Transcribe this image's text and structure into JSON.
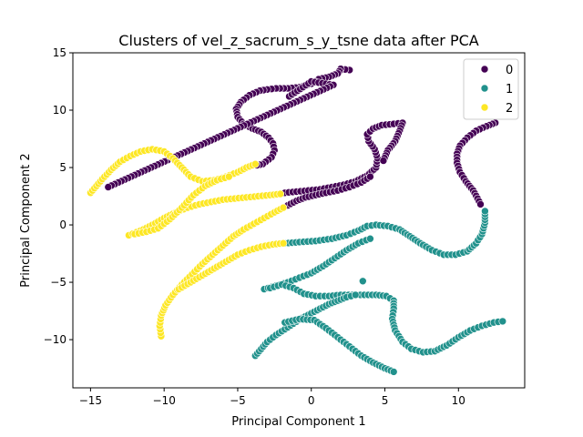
{
  "chart_data": {
    "type": "scatter",
    "title": "Clusters of vel_z_sacrum_s_y_tsne data after PCA",
    "xlabel": "Principal Component 1",
    "ylabel": "Principal Component 2",
    "xlim": [
      -16.2,
      14.5
    ],
    "ylim": [
      -14.2,
      15.0
    ],
    "xticks": [
      -15,
      -10,
      -5,
      0,
      5,
      10
    ],
    "yticks": [
      -10,
      -5,
      0,
      5,
      10,
      15
    ],
    "grid": false,
    "legend": {
      "placement": "top-right",
      "entries": [
        "0",
        "1",
        "2"
      ]
    },
    "series": [
      {
        "name": "0",
        "color": "#440154",
        "segments": [
          [
            [
              2.6,
              13.5
            ],
            [
              2.0,
              13.6
            ],
            [
              1.8,
              13.2
            ],
            [
              1.2,
              12.9
            ],
            [
              0.5,
              12.7
            ],
            [
              0.0,
              12.3
            ],
            [
              -0.8,
              12.0
            ],
            [
              -1.6,
              11.9
            ],
            [
              -2.4,
              11.9
            ],
            [
              -3.0,
              11.8
            ],
            [
              -3.5,
              11.7
            ],
            [
              -4.2,
              11.3
            ],
            [
              -4.8,
              10.7
            ],
            [
              -5.1,
              10.1
            ],
            [
              -5.0,
              9.4
            ],
            [
              -4.6,
              8.8
            ],
            [
              -4.0,
              8.4
            ],
            [
              -3.4,
              8.1
            ],
            [
              -2.9,
              7.6
            ],
            [
              -2.6,
              7.1
            ],
            [
              -2.5,
              6.5
            ],
            [
              -2.7,
              5.9
            ],
            [
              -3.3,
              5.3
            ],
            [
              -3.7,
              5.2
            ]
          ],
          [
            [
              -1.8,
              2.8
            ],
            [
              -1.0,
              2.9
            ],
            [
              -0.2,
              3.0
            ],
            [
              0.6,
              3.1
            ],
            [
              1.4,
              3.3
            ],
            [
              2.2,
              3.5
            ],
            [
              3.0,
              3.8
            ],
            [
              3.8,
              4.3
            ],
            [
              4.4,
              5.0
            ],
            [
              4.5,
              5.8
            ],
            [
              4.3,
              6.6
            ],
            [
              3.9,
              7.3
            ],
            [
              3.8,
              7.9
            ],
            [
              4.2,
              8.4
            ],
            [
              4.8,
              8.7
            ],
            [
              5.6,
              8.8
            ],
            [
              6.2,
              8.9
            ],
            [
              6.0,
              8.2
            ],
            [
              5.7,
              7.3
            ],
            [
              5.2,
              6.5
            ],
            [
              4.9,
              5.6
            ]
          ],
          [
            [
              -1.6,
              1.7
            ],
            [
              -1.0,
              2.1
            ],
            [
              -0.4,
              2.4
            ],
            [
              0.3,
              2.6
            ],
            [
              1.0,
              2.8
            ],
            [
              1.8,
              3.0
            ],
            [
              2.6,
              3.3
            ],
            [
              3.4,
              3.7
            ],
            [
              4.0,
              4.2
            ]
          ],
          [
            [
              12.5,
              8.9
            ],
            [
              11.9,
              8.6
            ],
            [
              11.2,
              8.2
            ],
            [
              10.6,
              7.6
            ],
            [
              10.1,
              6.9
            ],
            [
              9.9,
              6.2
            ],
            [
              9.9,
              5.4
            ],
            [
              10.1,
              4.6
            ],
            [
              10.5,
              3.8
            ],
            [
              11.0,
              3.0
            ],
            [
              11.3,
              2.3
            ],
            [
              11.5,
              1.8
            ]
          ],
          [
            [
              -1.5,
              11.2
            ],
            [
              0.0,
              12.5
            ],
            [
              1.5,
              12.2
            ],
            [
              -13.8,
              3.3
            ]
          ]
        ]
      },
      {
        "name": "1",
        "color": "#21918c",
        "segments": [
          [
            [
              -1.8,
              -1.6
            ],
            [
              -0.8,
              -1.5
            ],
            [
              0.3,
              -1.4
            ],
            [
              1.4,
              -1.2
            ],
            [
              2.4,
              -0.9
            ],
            [
              3.2,
              -0.5
            ],
            [
              3.8,
              -0.1
            ],
            [
              4.4,
              0.0
            ],
            [
              5.2,
              -0.1
            ],
            [
              6.0,
              -0.4
            ],
            [
              6.7,
              -1.0
            ],
            [
              7.4,
              -1.6
            ],
            [
              8.2,
              -2.2
            ],
            [
              9.0,
              -2.6
            ],
            [
              9.8,
              -2.6
            ],
            [
              10.6,
              -2.3
            ],
            [
              11.2,
              -1.6
            ],
            [
              11.6,
              -0.8
            ],
            [
              11.8,
              0.2
            ],
            [
              11.8,
              1.2
            ]
          ],
          [
            [
              -3.2,
              -5.6
            ],
            [
              -2.4,
              -5.3
            ],
            [
              -1.6,
              -5.0
            ],
            [
              -0.8,
              -4.6
            ],
            [
              0.0,
              -4.2
            ],
            [
              0.8,
              -3.6
            ],
            [
              1.6,
              -2.9
            ],
            [
              2.4,
              -2.2
            ],
            [
              3.2,
              -1.6
            ],
            [
              4.0,
              -1.2
            ]
          ],
          [
            [
              -2.8,
              -5.5
            ],
            [
              -2.0,
              -5.2
            ],
            [
              -1.2,
              -5.5
            ],
            [
              -0.5,
              -6.0
            ],
            [
              0.3,
              -6.2
            ],
            [
              1.2,
              -6.2
            ],
            [
              2.0,
              -6.1
            ],
            [
              2.8,
              -6.1
            ],
            [
              3.6,
              -6.1
            ],
            [
              4.4,
              -6.1
            ],
            [
              5.1,
              -6.2
            ],
            [
              5.6,
              -6.6
            ],
            [
              5.6,
              -7.3
            ],
            [
              5.5,
              -8.2
            ],
            [
              5.7,
              -9.2
            ],
            [
              6.2,
              -10.2
            ],
            [
              6.8,
              -10.8
            ],
            [
              7.6,
              -11.1
            ],
            [
              8.4,
              -11.0
            ],
            [
              9.2,
              -10.5
            ],
            [
              10.0,
              -9.8
            ],
            [
              10.8,
              -9.2
            ],
            [
              11.6,
              -8.8
            ],
            [
              12.4,
              -8.5
            ],
            [
              13.0,
              -8.4
            ]
          ],
          [
            [
              -3.8,
              -11.4
            ],
            [
              -3.4,
              -10.8
            ],
            [
              -3.0,
              -10.2
            ],
            [
              -2.4,
              -9.6
            ],
            [
              -1.8,
              -9.1
            ],
            [
              -1.2,
              -8.6
            ],
            [
              -0.6,
              -8.1
            ],
            [
              0.0,
              -7.7
            ],
            [
              0.6,
              -7.3
            ],
            [
              1.2,
              -6.9
            ],
            [
              1.8,
              -6.6
            ],
            [
              2.4,
              -6.3
            ],
            [
              3.0,
              -6.1
            ]
          ],
          [
            [
              -1.8,
              -8.5
            ],
            [
              -0.8,
              -8.2
            ],
            [
              0.2,
              -8.3
            ],
            [
              1.0,
              -9.0
            ],
            [
              1.8,
              -9.8
            ],
            [
              2.6,
              -10.6
            ],
            [
              3.4,
              -11.4
            ],
            [
              4.2,
              -12.0
            ],
            [
              5.0,
              -12.5
            ],
            [
              5.6,
              -12.8
            ]
          ],
          [
            [
              3.5,
              -4.9
            ]
          ]
        ]
      },
      {
        "name": "2",
        "color": "#fde725",
        "segments": [
          [
            [
              -15.0,
              2.8
            ],
            [
              -14.6,
              3.4
            ],
            [
              -14.2,
              4.0
            ],
            [
              -13.6,
              4.8
            ],
            [
              -13.0,
              5.5
            ],
            [
              -12.3,
              6.0
            ],
            [
              -11.6,
              6.4
            ],
            [
              -10.8,
              6.6
            ],
            [
              -10.0,
              6.4
            ],
            [
              -9.4,
              5.8
            ],
            [
              -8.8,
              5.0
            ],
            [
              -8.2,
              4.2
            ],
            [
              -7.4,
              3.8
            ],
            [
              -6.6,
              3.9
            ],
            [
              -5.8,
              4.2
            ],
            [
              -5.0,
              4.6
            ],
            [
              -4.4,
              5.0
            ],
            [
              -3.8,
              5.3
            ]
          ],
          [
            [
              -12.4,
              -0.9
            ],
            [
              -11.6,
              -0.5
            ],
            [
              -10.8,
              0.0
            ],
            [
              -10.0,
              0.6
            ],
            [
              -9.2,
              1.1
            ],
            [
              -8.4,
              1.5
            ],
            [
              -7.6,
              1.8
            ],
            [
              -6.8,
              2.0
            ],
            [
              -6.0,
              2.2
            ],
            [
              -5.2,
              2.3
            ],
            [
              -4.4,
              2.4
            ],
            [
              -3.6,
              2.5
            ],
            [
              -2.8,
              2.6
            ],
            [
              -2.1,
              2.7
            ]
          ],
          [
            [
              -12.0,
              -0.8
            ],
            [
              -11.2,
              -0.6
            ],
            [
              -10.4,
              -0.3
            ],
            [
              -9.6,
              0.5
            ],
            [
              -8.8,
              1.5
            ],
            [
              -8.0,
              2.6
            ],
            [
              -7.2,
              3.4
            ],
            [
              -6.4,
              3.9
            ],
            [
              -5.6,
              4.2
            ]
          ],
          [
            [
              -10.2,
              -9.7
            ],
            [
              -10.3,
              -8.8
            ],
            [
              -10.2,
              -7.9
            ],
            [
              -9.9,
              -7.0
            ],
            [
              -9.4,
              -6.1
            ],
            [
              -8.8,
              -5.2
            ],
            [
              -8.1,
              -4.3
            ],
            [
              -7.4,
              -3.4
            ],
            [
              -6.7,
              -2.6
            ],
            [
              -6.0,
              -1.8
            ],
            [
              -5.3,
              -1.0
            ],
            [
              -4.6,
              -0.4
            ],
            [
              -3.9,
              0.1
            ],
            [
              -3.2,
              0.6
            ],
            [
              -2.5,
              1.1
            ],
            [
              -1.9,
              1.5
            ]
          ],
          [
            [
              -9.0,
              -5.6
            ],
            [
              -8.2,
              -5.0
            ],
            [
              -7.4,
              -4.4
            ],
            [
              -6.6,
              -3.8
            ],
            [
              -5.8,
              -3.2
            ],
            [
              -5.0,
              -2.6
            ],
            [
              -4.2,
              -2.2
            ],
            [
              -3.4,
              -1.9
            ],
            [
              -2.6,
              -1.7
            ],
            [
              -1.9,
              -1.6
            ]
          ]
        ]
      }
    ]
  }
}
